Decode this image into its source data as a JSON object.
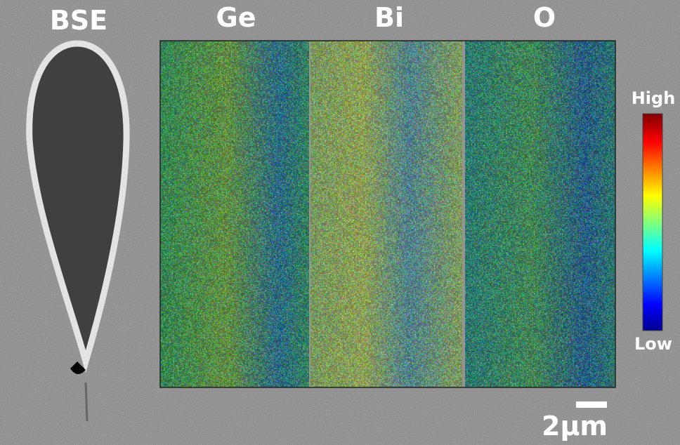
{
  "panels": {
    "bse": "BSE",
    "ge": "Ge",
    "bi": "Bi",
    "o": "O"
  },
  "colorbar": {
    "high": "High",
    "low": "Low"
  },
  "scale_bar": {
    "label": "2μm"
  }
}
